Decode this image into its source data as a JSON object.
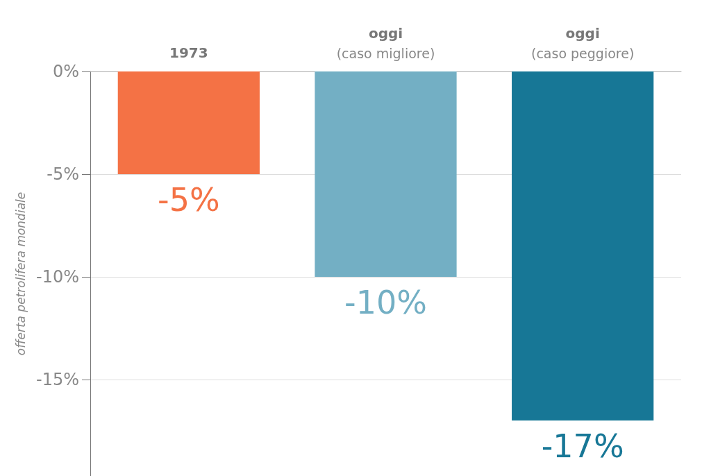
{
  "chart_data": {
    "type": "bar",
    "ylabel": "offerta petrolifera mondiale",
    "categories": [
      "1973",
      "oggi\n(caso migliore)",
      "oggi\n(caso peggiore)"
    ],
    "values": [
      -5,
      -10,
      -17
    ],
    "colors": [
      "#f47245",
      "#73afc4",
      "#177796"
    ],
    "value_labels": [
      "-5%",
      "-10%",
      "-17%"
    ],
    "ylim": [
      -19.7,
      0
    ],
    "yticks": [
      {
        "value": 0,
        "label": "0%"
      },
      {
        "value": -5,
        "label": "-5%"
      },
      {
        "value": -10,
        "label": "-10%"
      },
      {
        "value": -15,
        "label": "-15%"
      }
    ],
    "grid": "y"
  }
}
